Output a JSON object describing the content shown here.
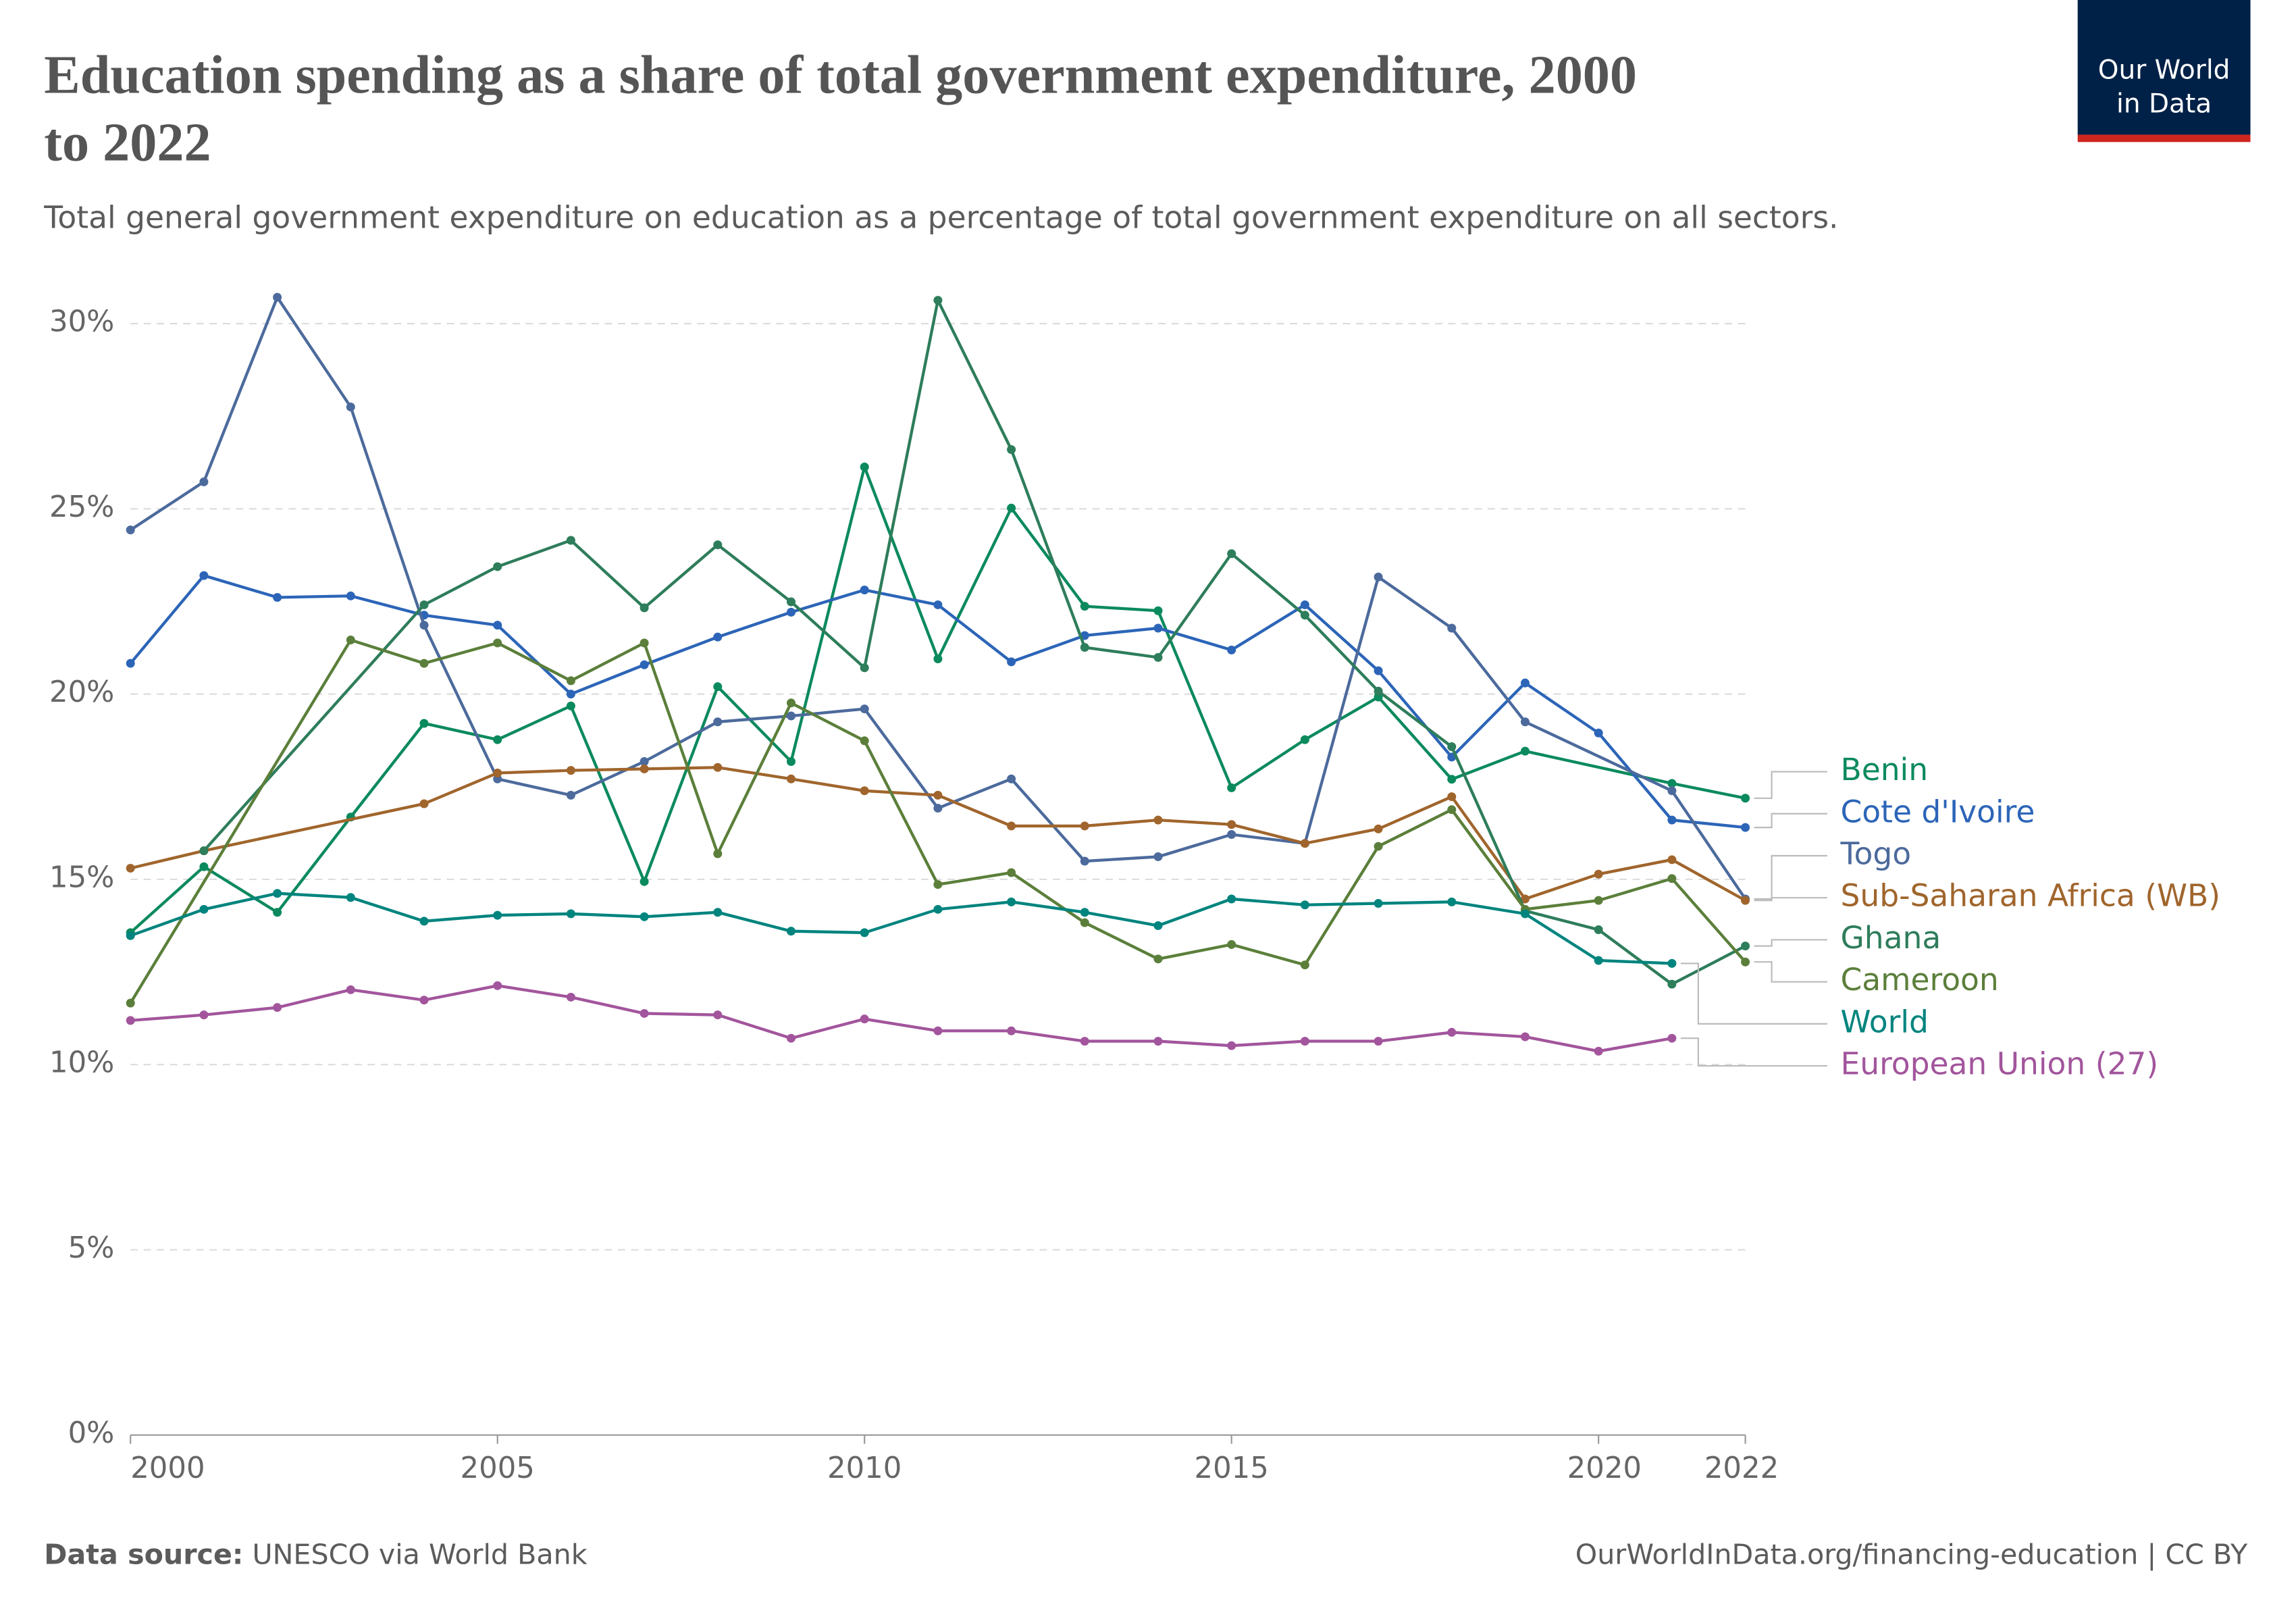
{
  "chart_data": {
    "type": "line",
    "title": "Education spending as a share of total government expenditure, 2000",
    "title_line2": "to 2022",
    "subtitle": "Total general government expenditure on education as a percentage of total government expenditure on all sectors.",
    "logo_line1": "Our World",
    "logo_line2": "in Data",
    "source_label": "Data source:",
    "source": "UNESCO via World Bank",
    "url": "OurWorldInData.org/financing-education | CC BY",
    "xlim": [
      2000,
      2022
    ],
    "xticks": [
      2000,
      2005,
      2010,
      2015,
      2020,
      2022
    ],
    "ylim": [
      0,
      30
    ],
    "yticks": [
      {
        "value": 0,
        "label": "0%"
      },
      {
        "value": 5,
        "label": "5%"
      },
      {
        "value": 10,
        "label": "10%"
      },
      {
        "value": 15,
        "label": "15%"
      },
      {
        "value": 20,
        "label": "20%"
      },
      {
        "value": 25,
        "label": "25%"
      },
      {
        "value": 30,
        "label": "30%"
      }
    ],
    "grid": true,
    "series": [
      {
        "name": "Benin",
        "color": "#0b8a5d",
        "x": [
          2000,
          2001,
          2002,
          2003,
          2004,
          2005,
          2006,
          2007,
          2008,
          2009,
          2010,
          2011,
          2012,
          2013,
          2014,
          2015,
          2016,
          2017,
          2018,
          2019,
          2021,
          2022
        ],
        "values": [
          13.56,
          15.34,
          14.11,
          16.68,
          19.21,
          18.77,
          19.68,
          14.94,
          20.2,
          18.18,
          26.13,
          20.95,
          25.02,
          22.37,
          22.25,
          17.47,
          18.77,
          19.92,
          17.7,
          18.46,
          17.59,
          17.19
        ]
      },
      {
        "name": "Cote d'Ivoire",
        "color": "#2c65b8",
        "x": [
          2000,
          2001,
          2002,
          2003,
          2004,
          2005,
          2006,
          2007,
          2008,
          2009,
          2010,
          2011,
          2012,
          2013,
          2014,
          2015,
          2016,
          2017,
          2018,
          2019,
          2020,
          2021,
          2022
        ],
        "values": [
          20.83,
          23.2,
          22.61,
          22.65,
          22.13,
          21.86,
          20.0,
          20.79,
          21.54,
          22.21,
          22.81,
          22.41,
          20.87,
          21.58,
          21.78,
          21.19,
          22.41,
          20.63,
          18.3,
          20.3,
          18.95,
          16.6,
          16.4
        ]
      },
      {
        "name": "Togo",
        "color": "#4c6a9c",
        "x": [
          2000,
          2001,
          2002,
          2003,
          2004,
          2005,
          2006,
          2007,
          2008,
          2009,
          2010,
          2011,
          2012,
          2013,
          2014,
          2015,
          2016,
          2017,
          2018,
          2019,
          2021,
          2022
        ],
        "values": [
          24.43,
          25.73,
          30.71,
          27.75,
          21.86,
          17.71,
          17.27,
          18.18,
          19.25,
          19.41,
          19.6,
          16.92,
          17.71,
          15.49,
          15.61,
          16.21,
          15.97,
          23.16,
          21.78,
          19.25,
          17.39,
          14.47
        ]
      },
      {
        "name": "Sub-Saharan Africa (WB)",
        "color": "#a0652c",
        "x": [
          2000,
          2001,
          2004,
          2005,
          2006,
          2007,
          2008,
          2009,
          2010,
          2011,
          2012,
          2013,
          2014,
          2015,
          2016,
          2017,
          2018,
          2019,
          2020,
          2021,
          2022
        ],
        "values": [
          15.3,
          15.77,
          17.04,
          17.87,
          17.94,
          17.98,
          18.02,
          17.71,
          17.39,
          17.27,
          16.44,
          16.44,
          16.6,
          16.48,
          15.97,
          16.36,
          17.23,
          14.47,
          15.14,
          15.53,
          14.43
        ]
      },
      {
        "name": "Ghana",
        "color": "#2e7d5b",
        "x": [
          2001,
          2004,
          2005,
          2006,
          2007,
          2008,
          2009,
          2010,
          2011,
          2012,
          2013,
          2014,
          2015,
          2016,
          2017,
          2018,
          2019,
          2020,
          2021,
          2022
        ],
        "values": [
          15.77,
          22.41,
          23.44,
          24.15,
          22.33,
          24.03,
          22.49,
          20.71,
          30.63,
          26.6,
          21.26,
          20.99,
          23.79,
          22.13,
          20.08,
          18.58,
          14.15,
          13.64,
          12.17,
          13.2
        ]
      },
      {
        "name": "Cameroon",
        "color": "#5b7f3a",
        "x": [
          2000,
          2003,
          2004,
          2005,
          2006,
          2007,
          2008,
          2009,
          2010,
          2011,
          2012,
          2013,
          2014,
          2015,
          2016,
          2017,
          2018,
          2019,
          2020,
          2021,
          2022
        ],
        "values": [
          11.66,
          21.46,
          20.83,
          21.38,
          20.36,
          21.38,
          15.69,
          19.76,
          18.74,
          14.86,
          15.18,
          13.83,
          12.85,
          13.24,
          12.69,
          15.89,
          16.88,
          14.19,
          14.43,
          15.02,
          12.77
        ]
      },
      {
        "name": "World",
        "color": "#00847e",
        "x": [
          2000,
          2001,
          2002,
          2003,
          2004,
          2005,
          2006,
          2007,
          2008,
          2009,
          2010,
          2011,
          2012,
          2013,
          2014,
          2015,
          2016,
          2017,
          2018,
          2019,
          2020,
          2021
        ],
        "values": [
          13.48,
          14.19,
          14.62,
          14.51,
          13.87,
          14.03,
          14.07,
          13.99,
          14.11,
          13.6,
          13.56,
          14.19,
          14.39,
          14.11,
          13.75,
          14.47,
          14.31,
          14.35,
          14.39,
          14.07,
          12.81,
          12.73
        ]
      },
      {
        "name": "European Union (27)",
        "color": "#a2559c",
        "x": [
          2000,
          2001,
          2002,
          2003,
          2004,
          2005,
          2006,
          2007,
          2008,
          2009,
          2010,
          2011,
          2012,
          2013,
          2014,
          2015,
          2016,
          2017,
          2018,
          2019,
          2020,
          2021
        ],
        "values": [
          11.19,
          11.34,
          11.54,
          12.02,
          11.74,
          12.13,
          11.82,
          11.38,
          11.34,
          10.71,
          11.23,
          10.91,
          10.91,
          10.63,
          10.63,
          10.51,
          10.63,
          10.63,
          10.87,
          10.75,
          10.36,
          10.71
        ]
      }
    ]
  }
}
